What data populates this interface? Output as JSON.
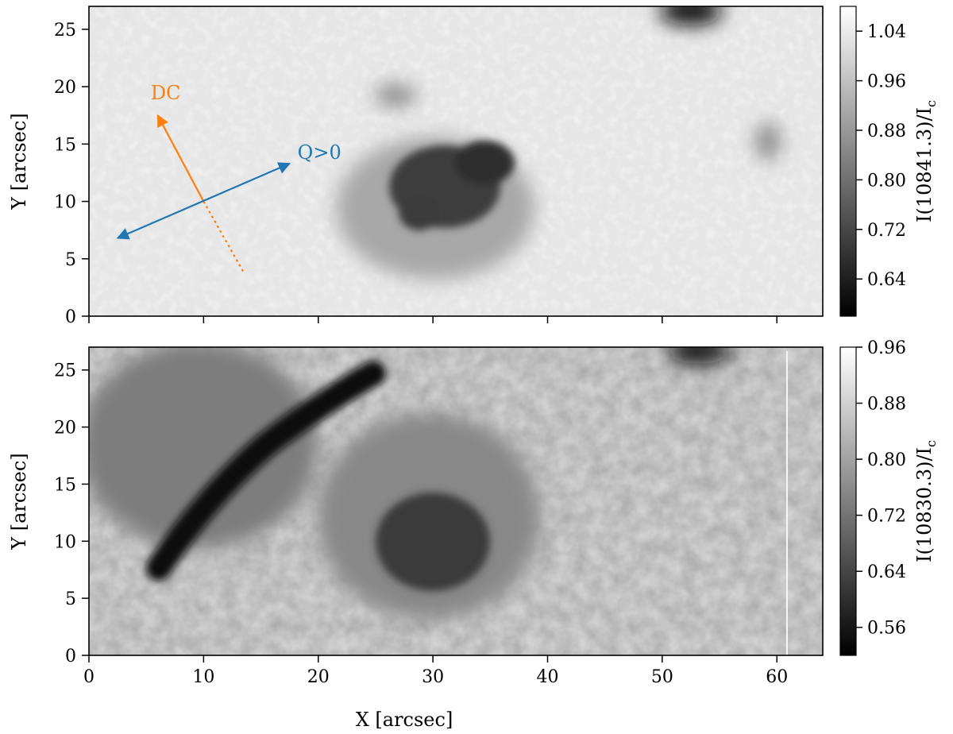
{
  "chart_data": [
    {
      "type": "heatmap",
      "title": "",
      "xlabel": "",
      "ylabel": "Y [arcsec]",
      "xlim": [
        0,
        64
      ],
      "ylim": [
        0,
        27
      ],
      "xticks": [
        0,
        10,
        20,
        30,
        40,
        50,
        60
      ],
      "xtick_labels_visible": false,
      "yticks": [
        0,
        5,
        10,
        15,
        20,
        25
      ],
      "grid": false,
      "colormap": "gray",
      "colorbar": {
        "label": "I(10841.3)/I",
        "label_subscript": "c",
        "range": [
          0.58,
          1.08
        ],
        "ticks": [
          0.64,
          0.72,
          0.8,
          0.88,
          0.96,
          1.04
        ],
        "tick_labels": [
          "0.64",
          "0.72",
          "0.80",
          "0.88",
          "0.96",
          "1.04"
        ]
      },
      "features": [
        {
          "name": "sunspot umbra",
          "x": 31,
          "y": 10,
          "value": 0.7
        },
        {
          "name": "penumbra",
          "x": 31,
          "y": 8,
          "value": 0.85
        },
        {
          "name": "pore",
          "x": 28,
          "y": 19.5,
          "value": 0.9
        },
        {
          "name": "pore",
          "x": 59,
          "y": 15,
          "value": 0.9
        },
        {
          "name": "dark spot",
          "x": 52,
          "y": 27,
          "value": 0.6
        }
      ],
      "annotations": [
        {
          "label": "DC",
          "color": "#ff7f0e",
          "from": [
            10,
            10
          ],
          "to": [
            6,
            17.5
          ],
          "dashed_to": [
            13.5,
            3.8
          ]
        },
        {
          "label": "Q>0",
          "color": "#1f77b4",
          "from": [
            2.5,
            6.8
          ],
          "to": [
            17.5,
            13.3
          ],
          "double_headed": true
        }
      ]
    },
    {
      "type": "heatmap",
      "title": "",
      "xlabel": "X [arcsec]",
      "ylabel": "Y [arcsec]",
      "xlim": [
        0,
        64
      ],
      "ylim": [
        0,
        27
      ],
      "xticks": [
        0,
        10,
        20,
        30,
        40,
        50,
        60
      ],
      "xtick_labels": [
        "0",
        "10",
        "20",
        "30",
        "40",
        "50",
        "60"
      ],
      "yticks": [
        0,
        5,
        10,
        15,
        20,
        25
      ],
      "grid": false,
      "colormap": "gray",
      "colorbar": {
        "label": "I(10830.3)/I",
        "label_subscript": "c",
        "range": [
          0.52,
          0.96
        ],
        "ticks": [
          0.56,
          0.64,
          0.72,
          0.8,
          0.88,
          0.96
        ],
        "tick_labels": [
          "0.56",
          "0.64",
          "0.72",
          "0.80",
          "0.88",
          "0.96"
        ]
      },
      "features": [
        {
          "name": "filament",
          "path_x": [
            7,
            10,
            14,
            19,
            25
          ],
          "path_y": [
            7,
            12,
            16,
            19,
            22
          ],
          "value": 0.55
        },
        {
          "name": "sunspot umbra",
          "x": 31,
          "y": 10,
          "value": 0.62
        },
        {
          "name": "dark spot",
          "x": 52,
          "y": 27,
          "value": 0.55
        }
      ],
      "annotations": []
    }
  ],
  "y_tick_labels": [
    "0",
    "5",
    "10",
    "15",
    "20",
    "25"
  ]
}
